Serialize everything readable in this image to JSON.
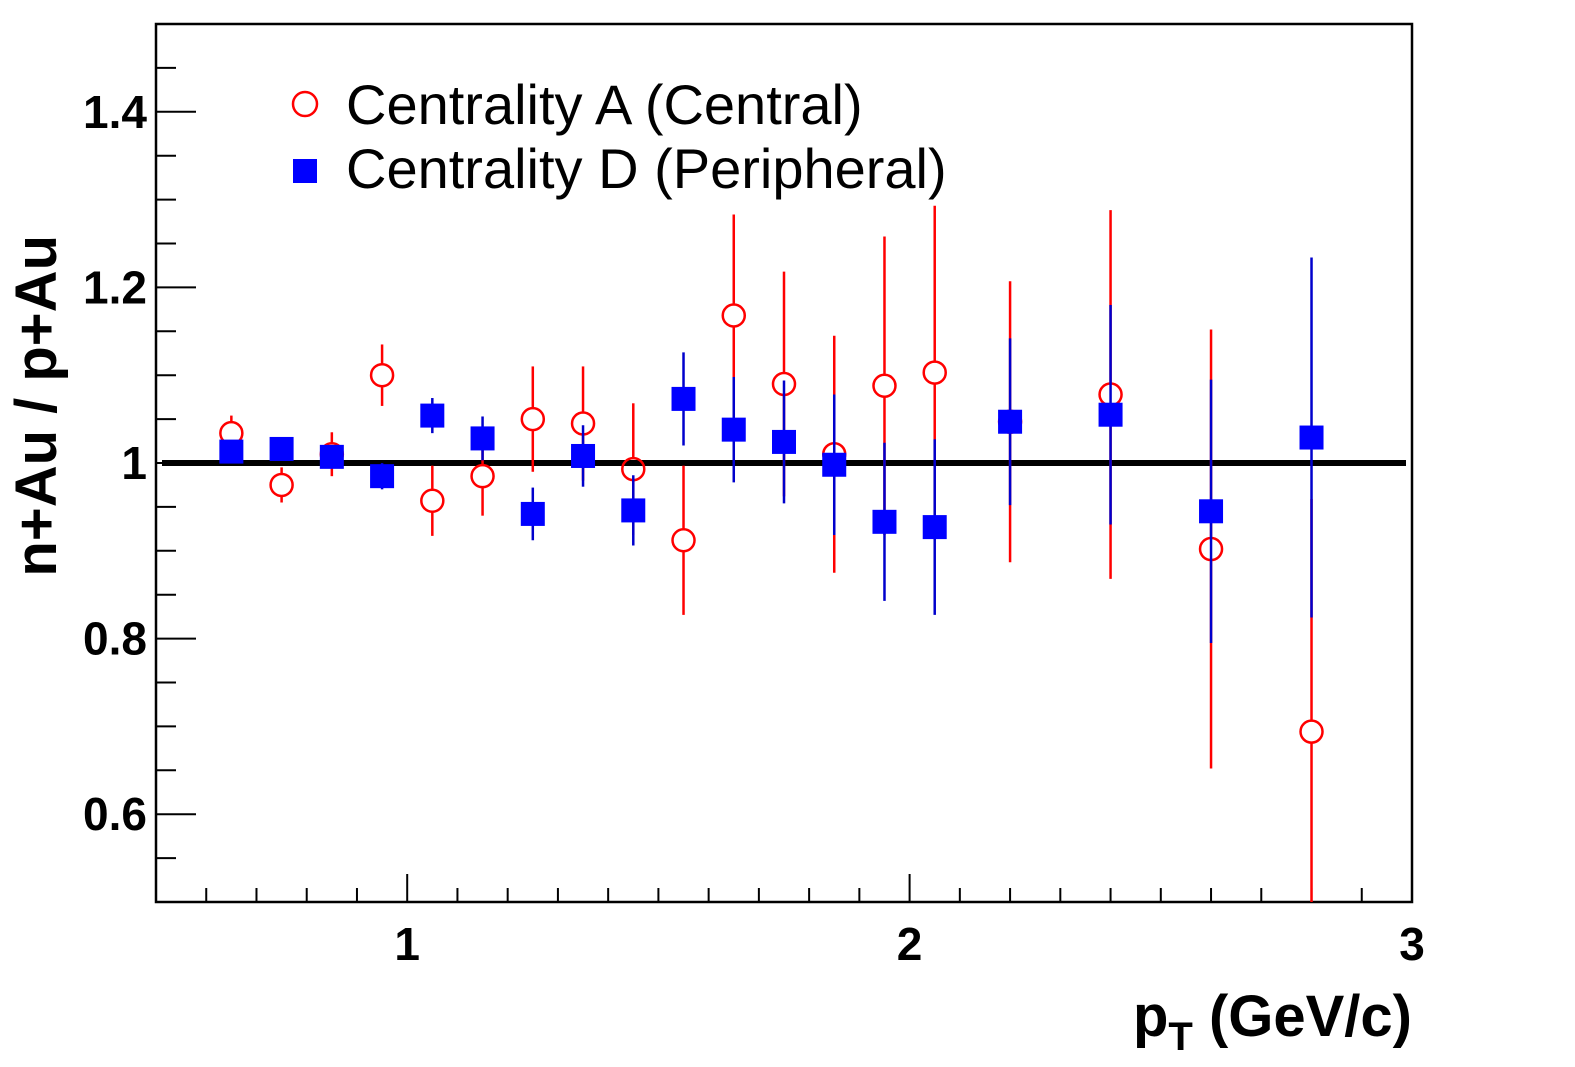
{
  "chart_data": {
    "type": "scatter",
    "xlabel": "p",
    "xlabel_sub": "T",
    "xlabel_unit": "(GeV/c)",
    "ylabel": "n+Au / p+Au",
    "xlim": [
      0.5,
      3.0
    ],
    "ylim": [
      0.5,
      1.5
    ],
    "x_tick_labels": [
      "1",
      "2",
      "3"
    ],
    "y_tick_labels": [
      "0.6",
      "0.8",
      "1",
      "1.2",
      "1.4"
    ],
    "reference_line": 1.0,
    "legend_position": "top-left",
    "series": [
      {
        "name": "Centrality A (Central)",
        "marker": "open-circle",
        "color": "#ff0000",
        "points": [
          {
            "x": 0.65,
            "y": 1.034,
            "err": 0.02
          },
          {
            "x": 0.75,
            "y": 0.975,
            "err": 0.02
          },
          {
            "x": 0.85,
            "y": 1.01,
            "err": 0.025
          },
          {
            "x": 0.95,
            "y": 1.1,
            "err": 0.035
          },
          {
            "x": 1.05,
            "y": 0.957,
            "err": 0.04
          },
          {
            "x": 1.15,
            "y": 0.985,
            "err": 0.045
          },
          {
            "x": 1.25,
            "y": 1.05,
            "err": 0.06
          },
          {
            "x": 1.35,
            "y": 1.045,
            "err": 0.065
          },
          {
            "x": 1.45,
            "y": 0.993,
            "err": 0.075
          },
          {
            "x": 1.55,
            "y": 0.912,
            "err": 0.085
          },
          {
            "x": 1.65,
            "y": 1.168,
            "err": 0.115
          },
          {
            "x": 1.75,
            "y": 1.09,
            "err": 0.128
          },
          {
            "x": 1.85,
            "y": 1.01,
            "err": 0.135
          },
          {
            "x": 1.95,
            "y": 1.088,
            "err": 0.17
          },
          {
            "x": 2.05,
            "y": 1.103,
            "err": 0.19
          },
          {
            "x": 2.2,
            "y": 1.047,
            "err": 0.16
          },
          {
            "x": 2.4,
            "y": 1.078,
            "err": 0.21
          },
          {
            "x": 2.6,
            "y": 0.902,
            "err": 0.25
          },
          {
            "x": 2.8,
            "y": 0.694,
            "err": 0.265
          }
        ]
      },
      {
        "name": "Centrality D (Peripheral)",
        "marker": "filled-square",
        "color": "#0000ff",
        "err_color": "#0000cc",
        "points": [
          {
            "x": 0.65,
            "y": 1.013,
            "err": 0.012
          },
          {
            "x": 0.75,
            "y": 1.016,
            "err": 0.012
          },
          {
            "x": 0.85,
            "y": 1.007,
            "err": 0.012
          },
          {
            "x": 0.95,
            "y": 0.985,
            "err": 0.015
          },
          {
            "x": 1.05,
            "y": 1.054,
            "err": 0.02
          },
          {
            "x": 1.15,
            "y": 1.028,
            "err": 0.025
          },
          {
            "x": 1.25,
            "y": 0.942,
            "err": 0.03
          },
          {
            "x": 1.35,
            "y": 1.008,
            "err": 0.035
          },
          {
            "x": 1.45,
            "y": 0.946,
            "err": 0.04
          },
          {
            "x": 1.55,
            "y": 1.073,
            "err": 0.053
          },
          {
            "x": 1.65,
            "y": 1.038,
            "err": 0.06
          },
          {
            "x": 1.75,
            "y": 1.024,
            "err": 0.07
          },
          {
            "x": 1.85,
            "y": 0.998,
            "err": 0.08
          },
          {
            "x": 1.95,
            "y": 0.933,
            "err": 0.09
          },
          {
            "x": 2.05,
            "y": 0.927,
            "err": 0.1
          },
          {
            "x": 2.2,
            "y": 1.047,
            "err": 0.095
          },
          {
            "x": 2.4,
            "y": 1.055,
            "err": 0.125
          },
          {
            "x": 2.6,
            "y": 0.945,
            "err": 0.15
          },
          {
            "x": 2.8,
            "y": 1.029,
            "err": 0.205
          }
        ]
      }
    ]
  }
}
